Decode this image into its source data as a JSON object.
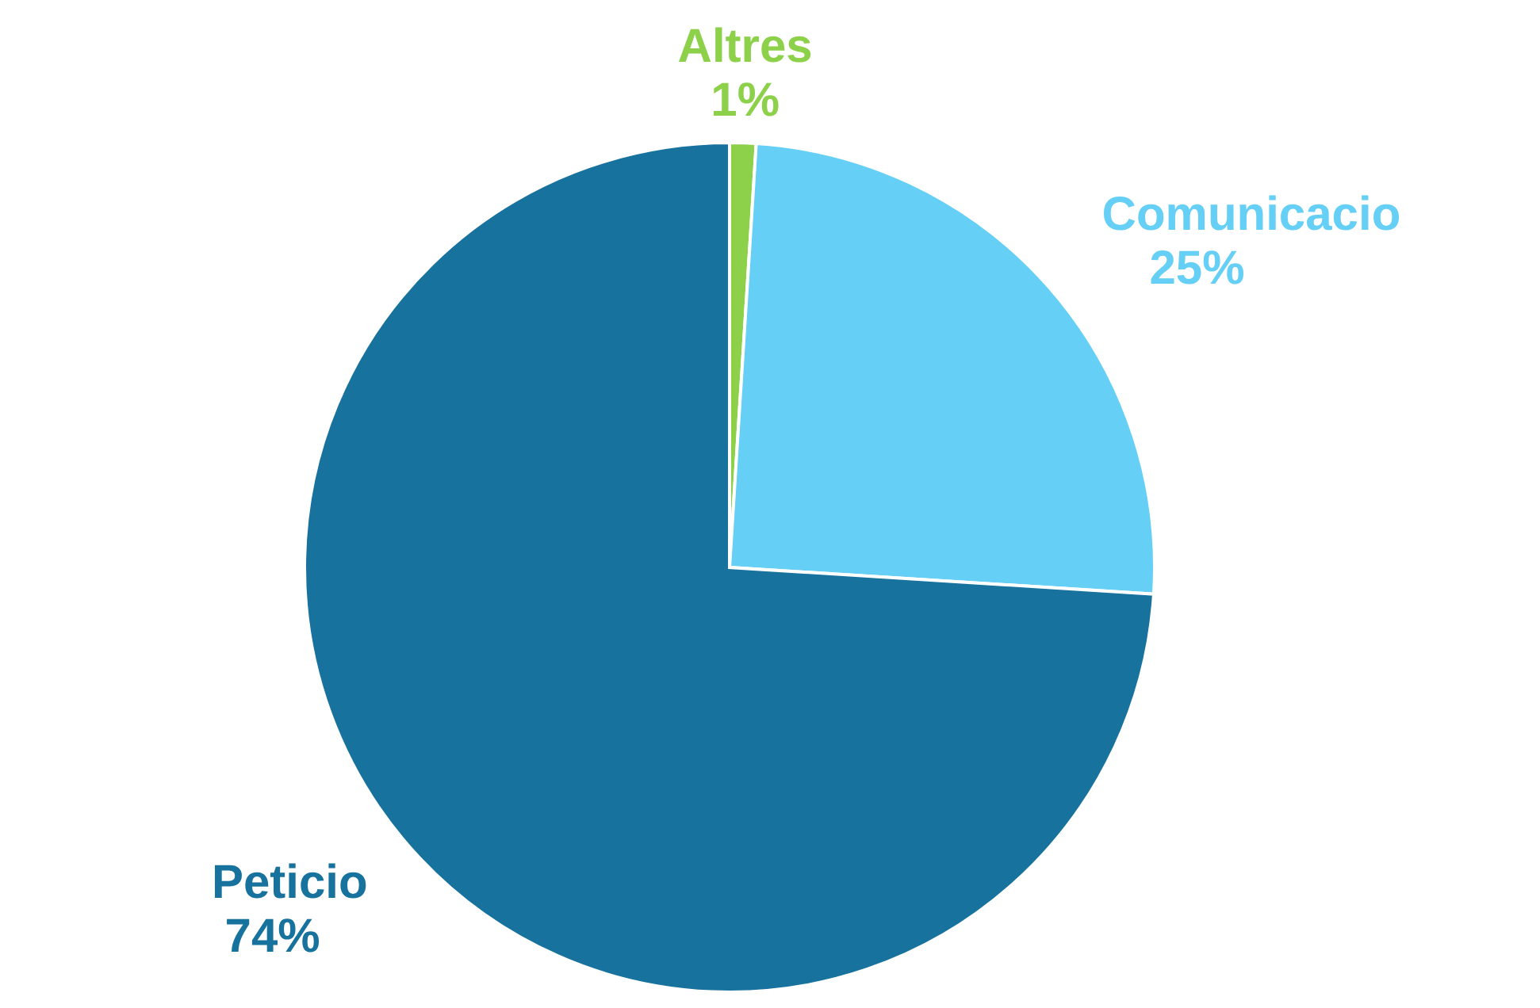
{
  "chart_data": {
    "type": "pie",
    "categories": [
      "Altres",
      "Comunicacio",
      "Peticio"
    ],
    "values": [
      1,
      25,
      74
    ],
    "colors": [
      "#8dd04a",
      "#66cff5",
      "#18729e"
    ],
    "value_labels": [
      "1%",
      "25%",
      "74%"
    ]
  }
}
